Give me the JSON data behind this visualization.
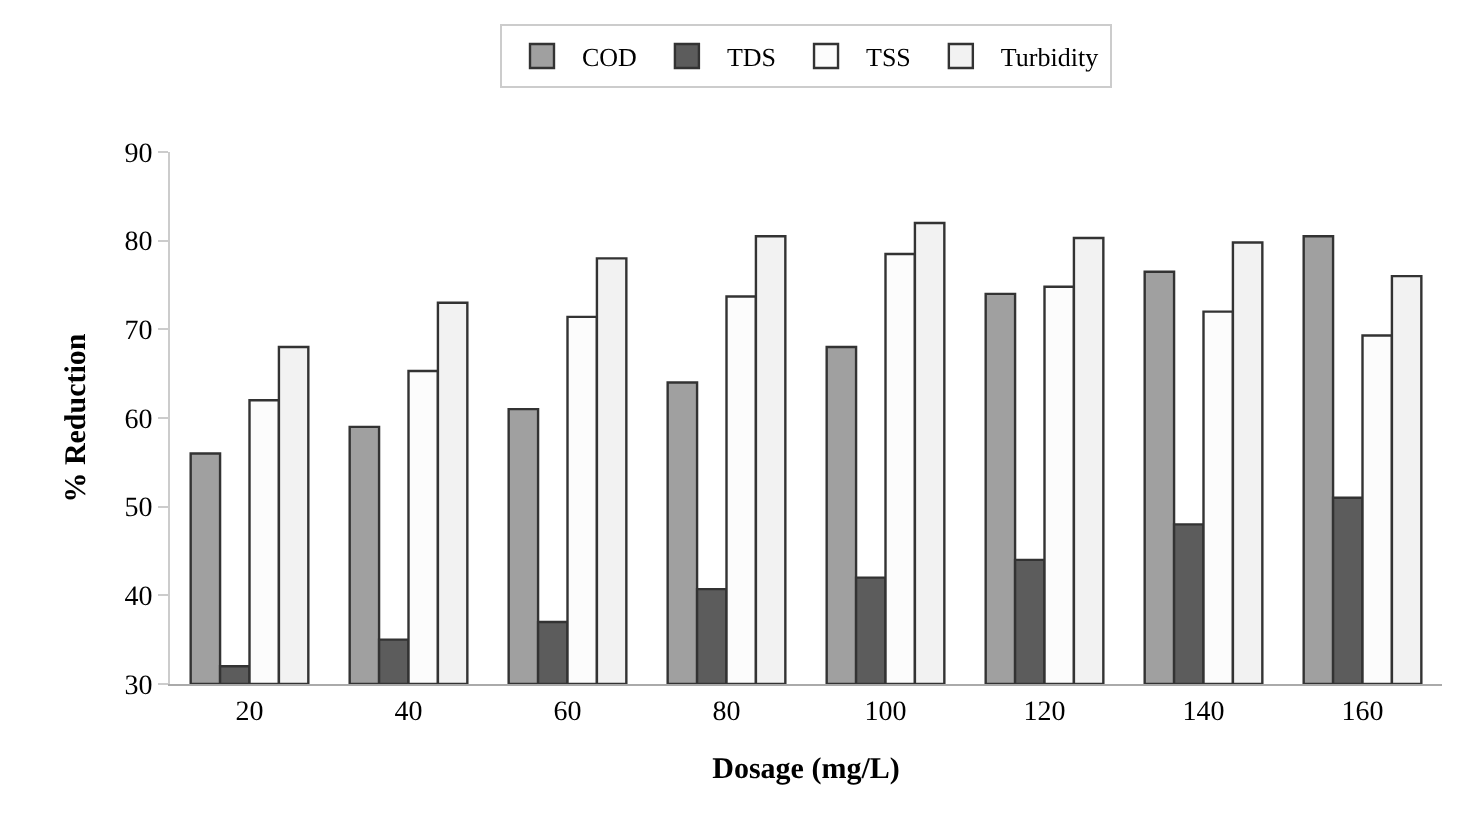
{
  "chart_data": {
    "type": "bar",
    "xlabel": "Dosage (mg/L)",
    "ylabel": "% Reduction",
    "categories": [
      "20",
      "40",
      "60",
      "80",
      "100",
      "120",
      "140",
      "160"
    ],
    "series": [
      {
        "name": "COD",
        "color": "#a0a0a0",
        "values": [
          56,
          59,
          61,
          64,
          68,
          74,
          76.5,
          80.5
        ]
      },
      {
        "name": "TDS",
        "color": "#5c5c5c",
        "values": [
          32,
          35,
          37,
          40.7,
          42,
          44,
          48,
          51
        ]
      },
      {
        "name": "TSS",
        "color": "#fcfcfc",
        "values": [
          62,
          65.3,
          71.4,
          73.7,
          78.5,
          74.8,
          72,
          69.3
        ]
      },
      {
        "name": "Turbidity",
        "color": "#f2f2f2",
        "values": [
          68,
          73,
          78,
          80.5,
          82,
          80.3,
          79.8,
          76
        ]
      }
    ],
    "ylim": [
      30,
      90
    ],
    "yticks": [
      30,
      40,
      50,
      60,
      70,
      80,
      90
    ],
    "legend": "top"
  }
}
